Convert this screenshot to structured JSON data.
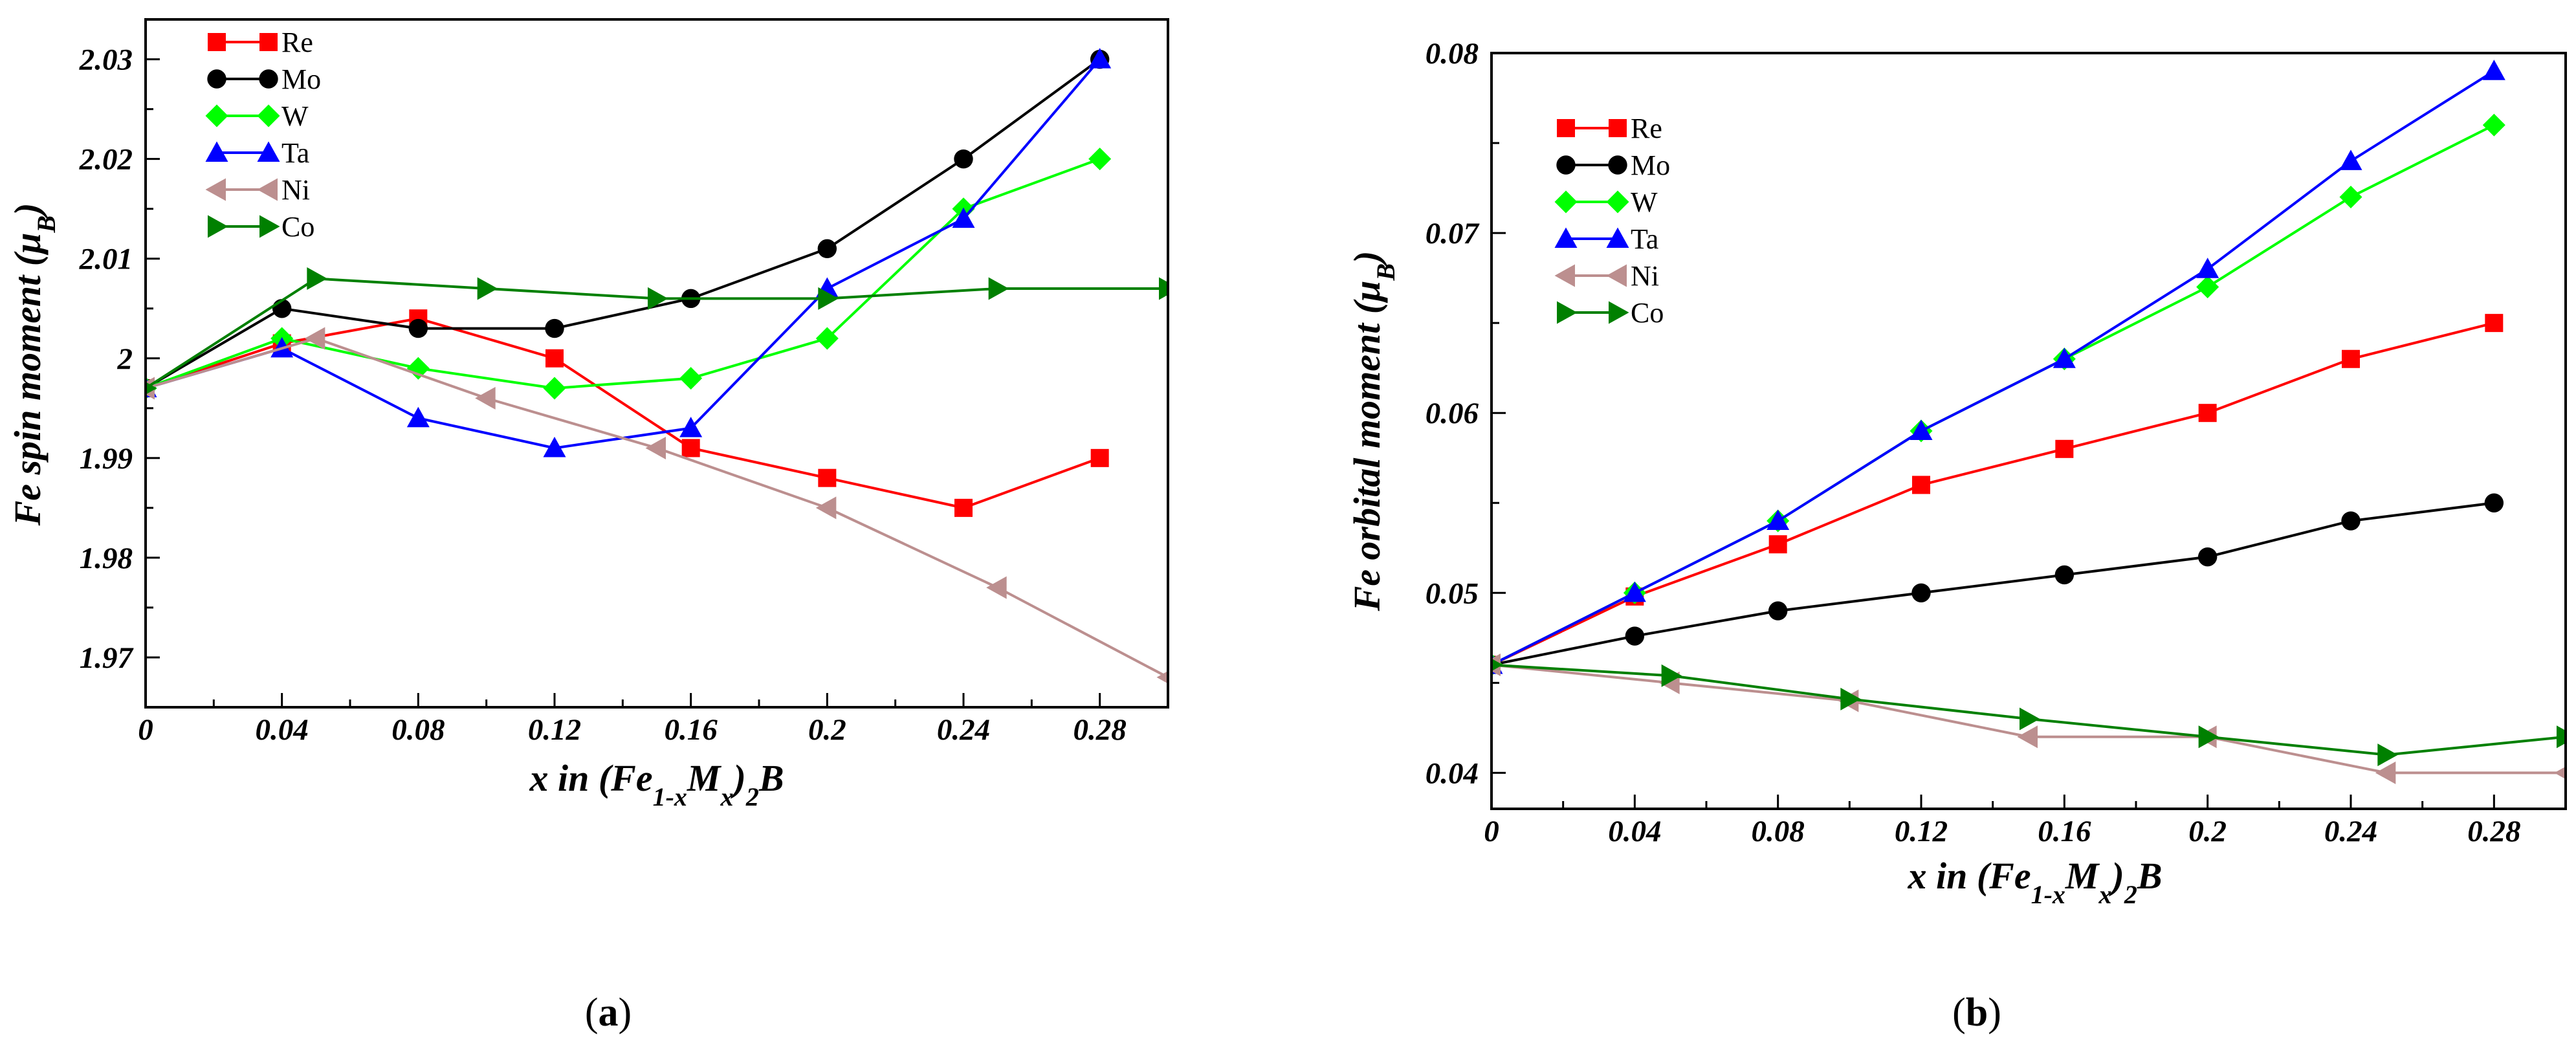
{
  "chart_data": [
    {
      "type": "line",
      "panel_label": "a",
      "xlabel": {
        "prefix": "x in (Fe",
        "sub1": "1-x",
        "mid": "M",
        "sub2": "x",
        "close": ")",
        "sub3": "2",
        "suffix": "B"
      },
      "ylabel": {
        "main": "Fe spin moment (μ",
        "sub": "B",
        "close": ")"
      },
      "xlim": [
        0,
        0.3
      ],
      "ylim": [
        1.965,
        2.034
      ],
      "xticks": [
        0,
        0.04,
        0.08,
        0.12,
        0.16,
        0.2,
        0.24,
        0.28
      ],
      "xtick_labels": [
        "0",
        "0.04",
        "0.08",
        "0.12",
        "0.16",
        "0.2",
        "0.24",
        "0.28"
      ],
      "yticks": [
        1.97,
        1.98,
        1.99,
        2.0,
        2.01,
        2.02,
        2.03
      ],
      "ytick_labels": [
        "1.97",
        "1.98",
        "1.99",
        "2",
        "2.01",
        "2.02",
        "2.03"
      ],
      "legend_position": "top-left",
      "series": [
        {
          "name": "Re",
          "color": "#ff0000",
          "marker": "square",
          "x": [
            0,
            0.04,
            0.08,
            0.12,
            0.16,
            0.2,
            0.24,
            0.28
          ],
          "y": [
            1.997,
            2.0015,
            2.004,
            2.0,
            1.991,
            1.988,
            1.985,
            1.99
          ]
        },
        {
          "name": "Mo",
          "color": "#000000",
          "marker": "circle",
          "x": [
            0,
            0.04,
            0.08,
            0.12,
            0.16,
            0.2,
            0.24,
            0.28
          ],
          "y": [
            1.997,
            2.005,
            2.003,
            2.003,
            2.006,
            2.011,
            2.02,
            2.03
          ]
        },
        {
          "name": "W",
          "color": "#00ff00",
          "marker": "diamond",
          "x": [
            0,
            0.04,
            0.08,
            0.12,
            0.16,
            0.2,
            0.24,
            0.28
          ],
          "y": [
            1.997,
            2.002,
            1.999,
            1.997,
            1.998,
            2.002,
            2.015,
            2.02
          ]
        },
        {
          "name": "Ta",
          "color": "#0000ff",
          "marker": "triangle-up",
          "x": [
            0,
            0.04,
            0.08,
            0.12,
            0.16,
            0.2,
            0.24,
            0.28
          ],
          "y": [
            1.997,
            2.001,
            1.994,
            1.991,
            1.993,
            2.007,
            2.014,
            2.03
          ]
        },
        {
          "name": "Ni",
          "color": "#bc8f8f",
          "marker": "triangle-left",
          "x": [
            0,
            0.05,
            0.1,
            0.15,
            0.2,
            0.25,
            0.3
          ],
          "y": [
            1.997,
            2.002,
            1.996,
            1.991,
            1.985,
            1.977,
            1.968
          ]
        },
        {
          "name": "Co",
          "color": "#008000",
          "marker": "triangle-right",
          "x": [
            0,
            0.05,
            0.1,
            0.15,
            0.2,
            0.25,
            0.3
          ],
          "y": [
            1.997,
            2.008,
            2.007,
            2.006,
            2.006,
            2.007,
            2.007
          ]
        }
      ]
    },
    {
      "type": "line",
      "panel_label": "b",
      "xlabel": {
        "prefix": "x in (Fe",
        "sub1": "1-x",
        "mid": "M",
        "sub2": "x",
        "close": ")",
        "sub3": "2",
        "suffix": "B"
      },
      "ylabel": {
        "main": "Fe orbital moment (μ",
        "sub": "B",
        "close": ")"
      },
      "xlim": [
        0,
        0.3
      ],
      "ylim": [
        0.038,
        0.08
      ],
      "xticks": [
        0,
        0.04,
        0.08,
        0.12,
        0.16,
        0.2,
        0.24,
        0.28
      ],
      "xtick_labels": [
        "0",
        "0.04",
        "0.08",
        "0.12",
        "0.16",
        "0.2",
        "0.24",
        "0.28"
      ],
      "yticks": [
        0.04,
        0.05,
        0.06,
        0.07,
        0.08
      ],
      "ytick_labels": [
        "0.04",
        "0.05",
        "0.06",
        "0.07",
        "0.08"
      ],
      "legend_position": "top-left",
      "series": [
        {
          "name": "Re",
          "color": "#ff0000",
          "marker": "square",
          "x": [
            0,
            0.04,
            0.08,
            0.12,
            0.16,
            0.2,
            0.24,
            0.28
          ],
          "y": [
            0.046,
            0.0498,
            0.0527,
            0.056,
            0.058,
            0.06,
            0.063,
            0.065
          ]
        },
        {
          "name": "Mo",
          "color": "#000000",
          "marker": "circle",
          "x": [
            0,
            0.04,
            0.08,
            0.12,
            0.16,
            0.2,
            0.24,
            0.28
          ],
          "y": [
            0.046,
            0.0476,
            0.049,
            0.05,
            0.051,
            0.052,
            0.054,
            0.055
          ]
        },
        {
          "name": "W",
          "color": "#00ff00",
          "marker": "diamond",
          "x": [
            0,
            0.04,
            0.08,
            0.12,
            0.16,
            0.2,
            0.24,
            0.28
          ],
          "y": [
            0.046,
            0.05,
            0.054,
            0.059,
            0.063,
            0.067,
            0.072,
            0.076
          ]
        },
        {
          "name": "Ta",
          "color": "#0000ff",
          "marker": "triangle-up",
          "x": [
            0,
            0.04,
            0.08,
            0.12,
            0.16,
            0.2,
            0.24,
            0.28
          ],
          "y": [
            0.046,
            0.05,
            0.054,
            0.059,
            0.063,
            0.068,
            0.074,
            0.079
          ]
        },
        {
          "name": "Ni",
          "color": "#bc8f8f",
          "marker": "triangle-left",
          "x": [
            0,
            0.05,
            0.1,
            0.15,
            0.2,
            0.25,
            0.3
          ],
          "y": [
            0.046,
            0.045,
            0.044,
            0.042,
            0.042,
            0.04,
            0.04
          ]
        },
        {
          "name": "Co",
          "color": "#008000",
          "marker": "triangle-right",
          "x": [
            0,
            0.05,
            0.1,
            0.15,
            0.2,
            0.25,
            0.3
          ],
          "y": [
            0.046,
            0.0454,
            0.0441,
            0.043,
            0.042,
            0.041,
            0.042
          ]
        }
      ]
    }
  ]
}
